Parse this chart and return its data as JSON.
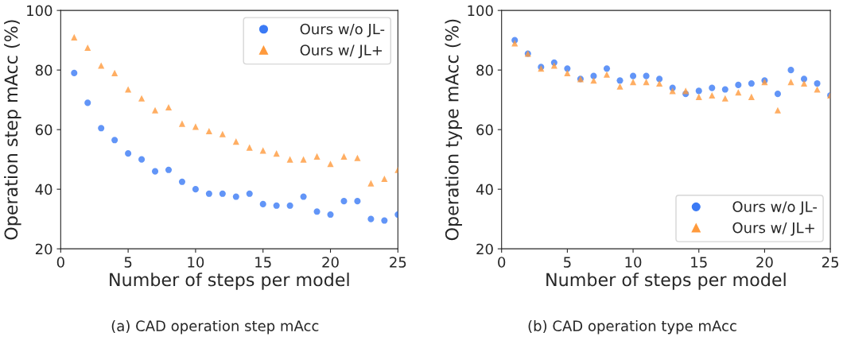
{
  "chart_data": [
    {
      "type": "scatter",
      "xlabel": "Number of steps per model",
      "ylabel": "Operation step mAcc (%)",
      "xlim": [
        0,
        25
      ],
      "xticks": [
        0,
        5,
        10,
        15,
        20,
        25
      ],
      "ylim": [
        20,
        100
      ],
      "yticks": [
        20,
        40,
        60,
        80,
        100
      ],
      "legend": "top right",
      "annotations": [
        "(a) CAD operation step mAcc"
      ],
      "x": [
        1,
        2,
        3,
        4,
        5,
        6,
        7,
        8,
        9,
        10,
        11,
        12,
        13,
        14,
        15,
        16,
        17,
        18,
        19,
        20,
        21,
        22,
        23,
        24,
        25
      ],
      "series": [
        {
          "name": "Ours w/o JL-",
          "color": "#3b7af5",
          "marker": "circle",
          "values": [
            79,
            69,
            60.5,
            56.5,
            52,
            50,
            46,
            46.5,
            42.5,
            40,
            38.5,
            38.5,
            37.5,
            38.5,
            35,
            34.5,
            34.5,
            37.5,
            32.5,
            31.5,
            36,
            36,
            30,
            29.5,
            31.5
          ]
        },
        {
          "name": "Ours w/ JL+",
          "color": "#ff9a3c",
          "marker": "triangle",
          "values": [
            91,
            87.5,
            81.5,
            79,
            73.5,
            70.5,
            66.5,
            67.5,
            62,
            61,
            59.5,
            58.5,
            56,
            54,
            53,
            52,
            50,
            50,
            51,
            48.5,
            51,
            50.5,
            42,
            43.5,
            46.5
          ]
        }
      ]
    },
    {
      "type": "scatter",
      "xlabel": "Number of steps per model",
      "ylabel": "Operation type mAcc (%)",
      "xlim": [
        0,
        25
      ],
      "xticks": [
        0,
        5,
        10,
        15,
        20,
        25
      ],
      "ylim": [
        20,
        100
      ],
      "yticks": [
        20,
        40,
        60,
        80,
        100
      ],
      "legend": "bottom right",
      "annotations": [
        "(b) CAD operation type mAcc"
      ],
      "x": [
        1,
        2,
        3,
        4,
        5,
        6,
        7,
        8,
        9,
        10,
        11,
        12,
        13,
        14,
        15,
        16,
        17,
        18,
        19,
        20,
        21,
        22,
        23,
        24,
        25
      ],
      "series": [
        {
          "name": "Ours w/o JL-",
          "color": "#3b7af5",
          "marker": "circle",
          "values": [
            90,
            85.5,
            81,
            82.5,
            80.5,
            77,
            78,
            80.5,
            76.5,
            78,
            78,
            77,
            74,
            72,
            73,
            74,
            73.5,
            75,
            75.5,
            76.5,
            72,
            80,
            77,
            75.5,
            71.5
          ]
        },
        {
          "name": "Ours w/ JL+",
          "color": "#ff9a3c",
          "marker": "triangle",
          "values": [
            89,
            85.5,
            80.5,
            81.5,
            79,
            77,
            76.5,
            78.5,
            74.5,
            76,
            76,
            75.5,
            73,
            73,
            71,
            71.5,
            70.5,
            72.5,
            71,
            76,
            66.5,
            76,
            75.5,
            73.5,
            71.5
          ]
        }
      ]
    }
  ]
}
